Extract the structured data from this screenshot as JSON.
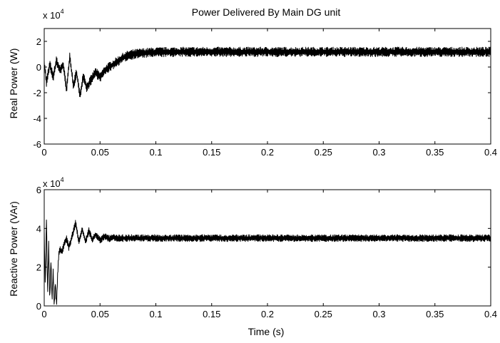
{
  "chart_data": [
    {
      "type": "line",
      "title": "Power Delivered By Main DG unit",
      "xlabel": "",
      "ylabel": "Real Power (W)",
      "exponent_label": "x 10",
      "exponent_power": "4",
      "xlim": [
        0,
        0.4
      ],
      "ylim": [
        -6,
        3
      ],
      "x_ticks": [
        "0",
        "0.05",
        "0.1",
        "0.15",
        "0.2",
        "0.25",
        "0.3",
        "0.35",
        "0.4"
      ],
      "y_ticks": [
        "-6",
        "-4",
        "-2",
        "0",
        "2"
      ],
      "grid": false,
      "series": [
        {
          "x": [
            0,
            0.002,
            0.005,
            0.008,
            0.011,
            0.014,
            0.017,
            0.02,
            0.023,
            0.026,
            0.029,
            0.032,
            0.035,
            0.038,
            0.042,
            0.046,
            0.05,
            0.055,
            0.06,
            0.065,
            0.07,
            0.075,
            0.08,
            0.09,
            0.1,
            0.12,
            0.15,
            0.2,
            0.25,
            0.3,
            0.35,
            0.4
          ],
          "y": [
            0.4,
            -1.2,
            0.2,
            -0.8,
            0.5,
            -0.3,
            0.2,
            -1.8,
            0.9,
            -1.5,
            -0.4,
            -2.3,
            -0.6,
            -1.6,
            -1.0,
            -0.4,
            -0.8,
            -0.2,
            0.1,
            0.4,
            0.7,
            0.9,
            1.0,
            1.1,
            1.15,
            1.18,
            1.18,
            1.18,
            1.18,
            1.18,
            1.18,
            1.18
          ],
          "noise": 0.25
        }
      ]
    },
    {
      "type": "line",
      "title": "",
      "xlabel": "Time (s)",
      "ylabel": "Reactive Power (VAr)",
      "exponent_label": "x 10",
      "exponent_power": "4",
      "xlim": [
        0,
        0.4
      ],
      "ylim": [
        0,
        6
      ],
      "x_ticks": [
        "0",
        "0.05",
        "0.1",
        "0.15",
        "0.2",
        "0.25",
        "0.3",
        "0.35",
        "0.4"
      ],
      "y_ticks": [
        "0",
        "2",
        "4",
        "6"
      ],
      "grid": false,
      "series": [
        {
          "x": [
            0,
            0.001,
            0.002,
            0.003,
            0.004,
            0.005,
            0.006,
            0.007,
            0.008,
            0.009,
            0.01,
            0.011,
            0.012,
            0.013,
            0.014,
            0.016,
            0.018,
            0.02,
            0.022,
            0.025,
            0.028,
            0.031,
            0.034,
            0.037,
            0.04,
            0.043,
            0.046,
            0.05,
            0.054,
            0.058,
            0.062,
            0.066,
            0.07,
            0.08,
            0.1,
            0.15,
            0.2,
            0.25,
            0.3,
            0.35,
            0.4
          ],
          "y": [
            3.8,
            1.0,
            4.6,
            0.5,
            3.2,
            0.2,
            2.4,
            0.3,
            1.8,
            0.0,
            1.2,
            0.0,
            1.6,
            2.7,
            2.9,
            2.8,
            3.2,
            3.5,
            3.0,
            3.6,
            4.3,
            3.3,
            4.0,
            3.3,
            3.9,
            3.4,
            3.7,
            3.4,
            3.6,
            3.45,
            3.55,
            3.5,
            3.5,
            3.5,
            3.5,
            3.5,
            3.5,
            3.5,
            3.5,
            3.5,
            3.5
          ],
          "noise": 0.12
        }
      ]
    }
  ]
}
